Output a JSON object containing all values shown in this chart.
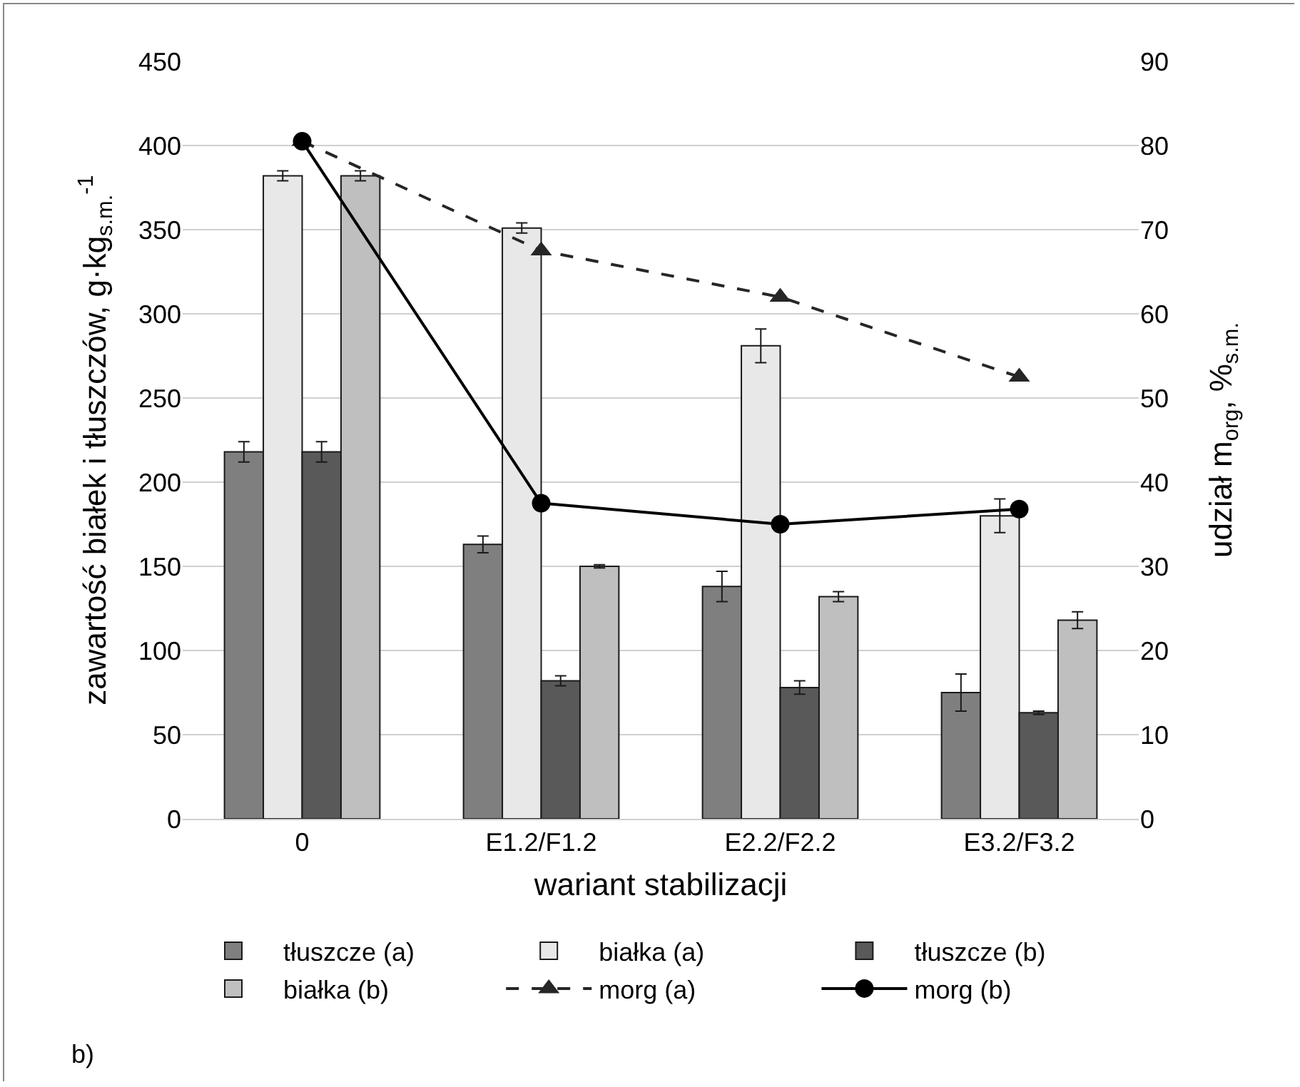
{
  "chart_data": {
    "type": "bar",
    "xlabel": "wariant stabilizacji",
    "ylabel": "zawartość białek i tłuszczów, g·kg$_{s.m.}$$^{-1}$",
    "y2label": "udział m$_{org}$, %$_{s.m.}$",
    "categories": [
      "0",
      "E1.2/F1.2",
      "E2.2/F2.2",
      "E3.2/F3.2"
    ],
    "series": [
      {
        "name": "tłuszcze (a)",
        "color": "#7f7f7f",
        "values": [
          218,
          163,
          138,
          75
        ],
        "errors": [
          6,
          5,
          9,
          11
        ]
      },
      {
        "name": "białka (a)",
        "color": "#e8e8e8",
        "values": [
          382,
          351,
          281,
          180
        ],
        "errors": [
          3,
          3,
          10,
          10
        ]
      },
      {
        "name": "tłuszcze (b)",
        "color": "#595959",
        "values": [
          218,
          82,
          78,
          63
        ],
        "errors": [
          6,
          3,
          4,
          1
        ]
      },
      {
        "name": "białka (b)",
        "color": "#bfbfbf",
        "values": [
          382,
          150,
          132,
          118
        ],
        "errors": [
          3,
          1,
          3,
          5
        ]
      },
      {
        "name": "morg (a)",
        "type": "line",
        "axis": "y2",
        "color": "#262626",
        "marker": "triangle",
        "line_style": "dashed",
        "values": [
          80.5,
          67.5,
          62,
          52.5
        ]
      },
      {
        "name": "morg (b)",
        "type": "line",
        "axis": "y2",
        "color": "#000000",
        "marker": "circle",
        "line_style": "solid",
        "values": [
          80.5,
          37.5,
          35,
          36.8
        ]
      }
    ],
    "ylim": [
      0,
      450
    ],
    "yticks": [
      0,
      50,
      100,
      150,
      200,
      250,
      300,
      350,
      400,
      450
    ],
    "y2lim": [
      0,
      90
    ],
    "y2ticks": [
      0,
      10,
      20,
      30,
      40,
      50,
      60,
      70,
      80,
      90
    ],
    "grid": "y",
    "legend": "bottom",
    "annotations": [
      "b)"
    ]
  }
}
